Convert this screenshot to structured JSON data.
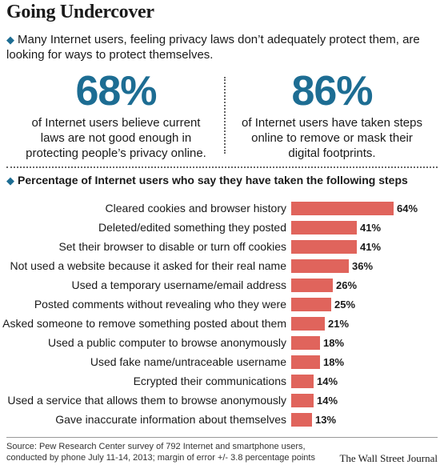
{
  "header": {
    "title": "Going Undercover",
    "intro": "Many Internet users, feeling privacy laws don’t adequately protect them, are looking for ways to protect themselves."
  },
  "stats": [
    {
      "value": "68%",
      "text": "of Internet users believe current laws are not good enough in protecting people’s privacy online."
    },
    {
      "value": "86%",
      "text": "of Internet users have taken steps online to remove or mask their digital footprints."
    }
  ],
  "section_heading": "Percentage of Internet users who say they have taken the following steps",
  "chart_data": {
    "type": "bar",
    "orientation": "horizontal",
    "title": "Percentage of Internet users who say they have taken the following steps",
    "categories": [
      "Cleared cookies and browser history",
      "Deleted/edited something they posted",
      "Set their browser to disable or turn off cookies",
      "Not used a website because it asked for their real name",
      "Used a temporary username/email address",
      "Posted comments without revealing who they were",
      "Asked someone to remove something posted about them",
      "Used a public computer to browse anonymously",
      "Used fake name/untraceable username",
      "Ecrypted their communications",
      "Used a service that allows them to browse anonymously",
      "Gave inaccurate information about themselves"
    ],
    "values": [
      64,
      41,
      41,
      36,
      26,
      25,
      21,
      18,
      18,
      14,
      14,
      13
    ],
    "value_labels": [
      "64%",
      "41%",
      "41%",
      "36%",
      "26%",
      "25%",
      "21%",
      "18%",
      "18%",
      "14%",
      "14%",
      "13%"
    ],
    "xlim": [
      0,
      64
    ],
    "grid": false,
    "bar_color": "#e0645c"
  },
  "footer": {
    "source": "Source: Pew Research Center survey of 792 Internet and smartphone users, conducted by phone July 11-14, 2013; margin of error +/- 3.8 percentage points",
    "publisher": "The Wall Street Journal"
  },
  "colors": {
    "accent": "#1d6d93",
    "bar": "#e0645c"
  }
}
